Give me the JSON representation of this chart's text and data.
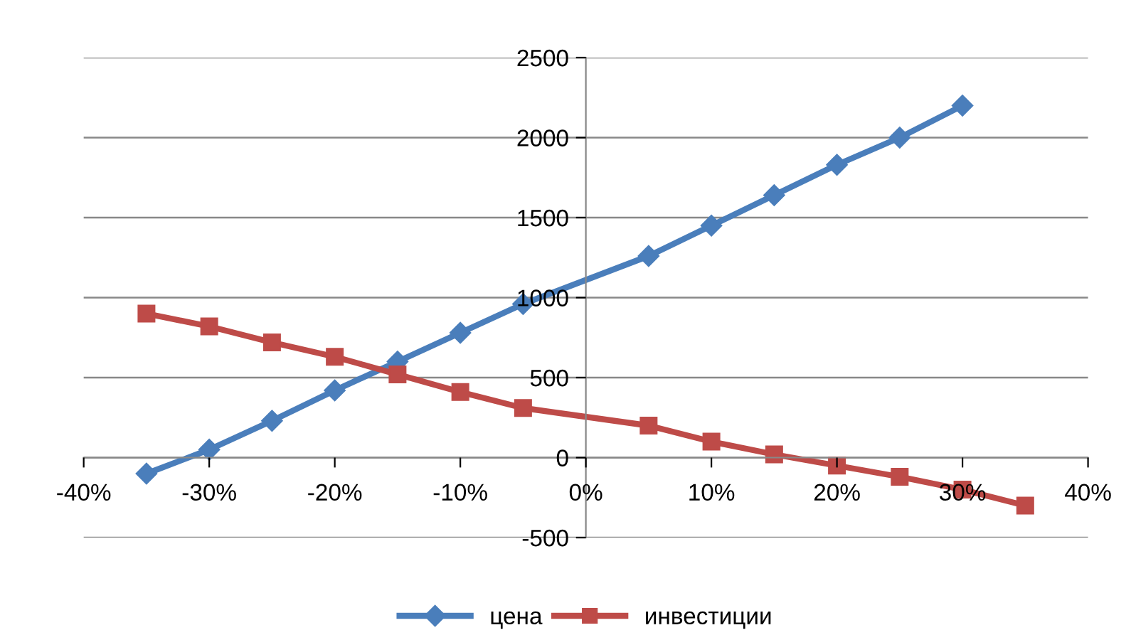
{
  "chart_data": {
    "type": "line",
    "x": [
      -35,
      -30,
      -25,
      -20,
      -15,
      -10,
      -5,
      5,
      10,
      15,
      20,
      25,
      30,
      35
    ],
    "series": [
      {
        "name": "цена",
        "color": "#4a7ebb",
        "marker": "diamond",
        "values": [
          -100,
          50,
          230,
          420,
          600,
          780,
          960,
          1260,
          1450,
          1640,
          1830,
          2000,
          2200,
          null
        ]
      },
      {
        "name": "инвестиции",
        "color": "#be4b48",
        "marker": "square",
        "values": [
          900,
          820,
          720,
          630,
          520,
          410,
          310,
          200,
          100,
          20,
          -50,
          -120,
          -200,
          -300
        ]
      }
    ],
    "xlim": [
      -40,
      40
    ],
    "xticks": [
      {
        "value": -40,
        "label": "-40%"
      },
      {
        "value": -30,
        "label": "-30%"
      },
      {
        "value": -20,
        "label": "-20%"
      },
      {
        "value": -10,
        "label": "-10%"
      },
      {
        "value": 0,
        "label": "0%"
      },
      {
        "value": 10,
        "label": "10%"
      },
      {
        "value": 20,
        "label": "20%"
      },
      {
        "value": 30,
        "label": "30%"
      },
      {
        "value": 40,
        "label": "40%"
      }
    ],
    "ylim": [
      -500,
      2500
    ],
    "yticks": [
      -500,
      0,
      500,
      1000,
      1500,
      2000,
      2500
    ],
    "grid": "y",
    "legend": "bottom",
    "line_style": "solid"
  }
}
